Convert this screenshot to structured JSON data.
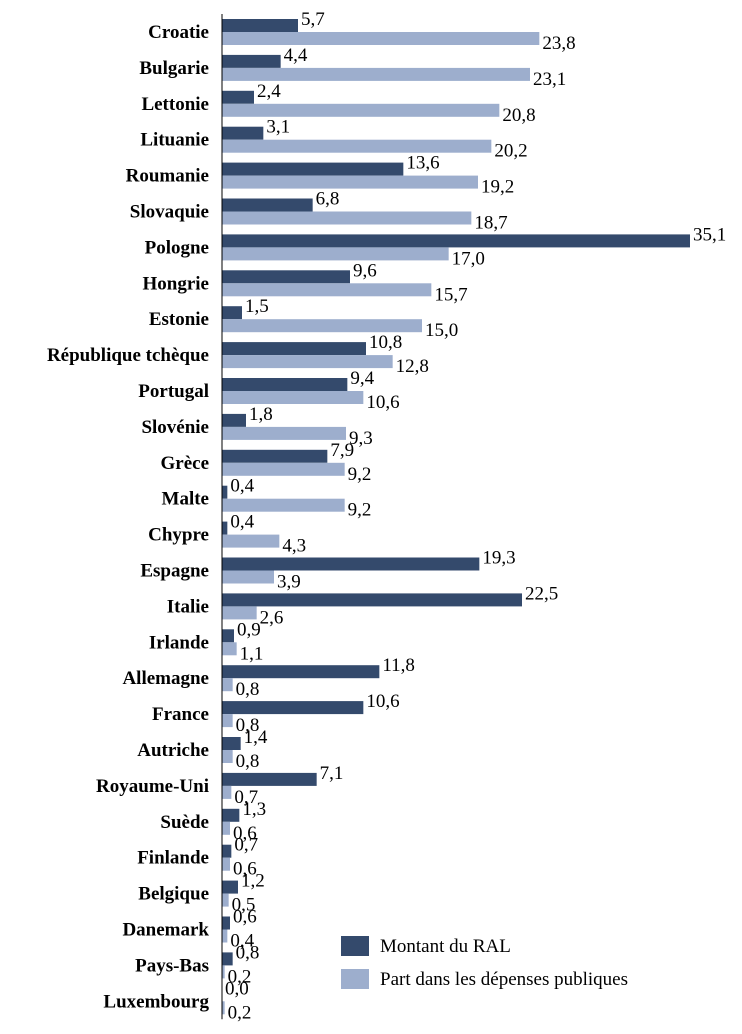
{
  "chart_data": {
    "type": "bar",
    "orientation": "horizontal",
    "categories": [
      "Croatie",
      "Bulgarie",
      "Lettonie",
      "Lituanie",
      "Roumanie",
      "Slovaquie",
      "Pologne",
      "Hongrie",
      "Estonie",
      "République tchèque",
      "Portugal",
      "Slovénie",
      "Grèce",
      "Malte",
      "Chypre",
      "Espagne",
      "Italie",
      "Irlande",
      "Allemagne",
      "France",
      "Autriche",
      "Royaume-Uni",
      "Suède",
      "Finlande",
      "Belgique",
      "Danemark",
      "Pays-Bas",
      "Luxembourg"
    ],
    "value_labels": {
      "Montant du RAL": [
        "5,7",
        "4,4",
        "2,4",
        "3,1",
        "13,6",
        "6,8",
        "35,1",
        "9,6",
        "1,5",
        "10,8",
        "9,4",
        "1,8",
        "7,9",
        "0,4",
        "0,4",
        "19,3",
        "22,5",
        "0,9",
        "11,8",
        "10,6",
        "1,4",
        "7,1",
        "1,3",
        "0,7",
        "1,2",
        "0,6",
        "0,8",
        "0,0"
      ],
      "Part dans les dépenses publiques": [
        "23,8",
        "23,1",
        "20,8",
        "20,2",
        "19,2",
        "18,7",
        "17,0",
        "15,7",
        "15,0",
        "12,8",
        "10,6",
        "9,3",
        "9,2",
        "9,2",
        "4,3",
        "3,9",
        "2,6",
        "1,1",
        "0,8",
        "0,8",
        "0,8",
        "0,7",
        "0,6",
        "0,6",
        "0,5",
        "0,4",
        "0,2",
        "0,2"
      ]
    },
    "series": [
      {
        "name": "Montant du RAL",
        "color": "#344a6c",
        "values": [
          5.7,
          4.4,
          2.4,
          3.1,
          13.6,
          6.8,
          35.1,
          9.6,
          1.5,
          10.8,
          9.4,
          1.8,
          7.9,
          0.4,
          0.4,
          19.3,
          22.5,
          0.9,
          11.8,
          10.6,
          1.4,
          7.1,
          1.3,
          0.7,
          1.2,
          0.6,
          0.8,
          0.0
        ]
      },
      {
        "name": "Part dans les dépenses publiques",
        "color": "#9daecd",
        "values": [
          23.8,
          23.1,
          20.8,
          20.2,
          19.2,
          18.7,
          17.0,
          15.7,
          15.0,
          12.8,
          10.6,
          9.3,
          9.2,
          9.2,
          4.3,
          3.9,
          2.6,
          1.1,
          0.8,
          0.8,
          0.8,
          0.7,
          0.6,
          0.6,
          0.5,
          0.4,
          0.2,
          0.2
        ]
      }
    ],
    "xlim": [
      0,
      35.1
    ],
    "grid": false,
    "legend_position": "bottom-right"
  }
}
